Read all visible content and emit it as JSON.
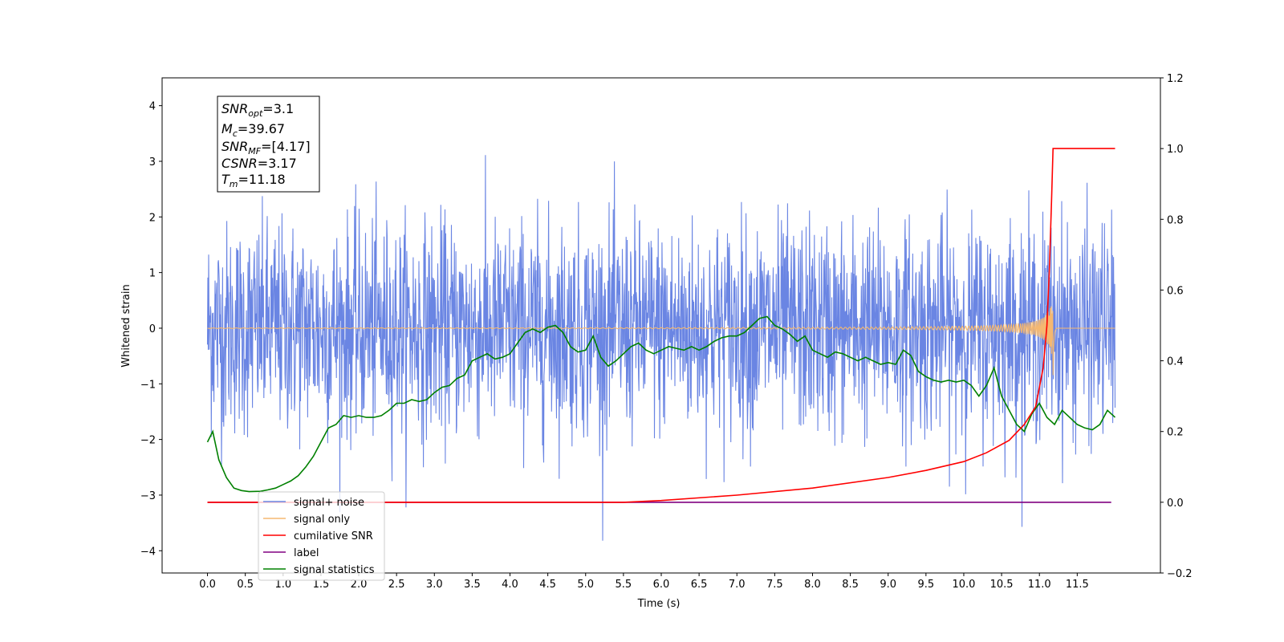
{
  "chart_data": {
    "type": "line",
    "xlabel": "Time (s)",
    "ylabel": "Whitened strain",
    "xlim": [
      -0.6,
      12.6
    ],
    "ylim": [
      -4.4,
      4.5
    ],
    "y2lim": [
      -0.2,
      1.2
    ],
    "xticks": [
      "0.0",
      "0.5",
      "1.0",
      "1.5",
      "2.0",
      "2.5",
      "3.0",
      "3.5",
      "4.0",
      "4.5",
      "5.0",
      "5.5",
      "6.0",
      "6.5",
      "7.0",
      "7.5",
      "8.0",
      "8.5",
      "9.0",
      "9.5",
      "10.0",
      "10.5",
      "11.0",
      "11.5"
    ],
    "yticks": [
      "4",
      "3",
      "2",
      "1",
      "0",
      "−1",
      "−2",
      "−3",
      "−4"
    ],
    "y2ticks": [
      "1.2",
      "1.0",
      "0.8",
      "0.6",
      "0.4",
      "0.2",
      "0.0",
      "−0.2"
    ],
    "legend_position": "lower-left",
    "annotation": {
      "snr_opt": {
        "main": "SNR",
        "sub": "opt",
        "value": "=3.1"
      },
      "mc": {
        "main": "M",
        "sub": "c",
        "value": "=39.67"
      },
      "snr_mf": {
        "main": "SNR",
        "sub": "MF",
        "value": "=[4.17]"
      },
      "csnr": {
        "main": "CSNR",
        "value": "=3.17"
      },
      "tm": {
        "main": "T",
        "sub": "m",
        "value": "=11.18"
      }
    },
    "series": [
      {
        "name": "signal+ noise",
        "color": "#6a85e3",
        "axis": "left",
        "std": 0.95,
        "range": [
          0.0,
          12.0
        ]
      },
      {
        "name": "signal only",
        "color": "#f5b870",
        "axis": "left",
        "merger_time": 11.18,
        "peak_amplitude": 0.65
      },
      {
        "name": "cumilative SNR",
        "color": "#ff0000",
        "axis": "right",
        "x": [
          0.0,
          5.5,
          6.0,
          7.0,
          8.0,
          9.0,
          9.5,
          10.0,
          10.3,
          10.6,
          10.8,
          10.95,
          11.05,
          11.1,
          11.13,
          11.16,
          11.18,
          12.0
        ],
        "y": [
          0.0,
          0.0,
          0.005,
          0.02,
          0.04,
          0.07,
          0.09,
          0.115,
          0.14,
          0.175,
          0.22,
          0.27,
          0.38,
          0.5,
          0.65,
          0.85,
          1.0,
          1.0
        ]
      },
      {
        "name": "label",
        "color": "#800080",
        "axis": "right",
        "x": [
          0.0,
          11.95
        ],
        "y": [
          0.0,
          0.0
        ]
      },
      {
        "name": "signal statistics",
        "color": "#008000",
        "axis": "right",
        "x": [
          0.0,
          0.07,
          0.15,
          0.25,
          0.35,
          0.45,
          0.55,
          0.7,
          0.8,
          0.9,
          1.0,
          1.1,
          1.2,
          1.3,
          1.4,
          1.5,
          1.6,
          1.7,
          1.8,
          1.9,
          2.0,
          2.1,
          2.2,
          2.3,
          2.4,
          2.5,
          2.6,
          2.7,
          2.8,
          2.9,
          3.0,
          3.1,
          3.2,
          3.3,
          3.4,
          3.5,
          3.6,
          3.7,
          3.8,
          3.9,
          4.0,
          4.1,
          4.2,
          4.3,
          4.4,
          4.5,
          4.6,
          4.7,
          4.8,
          4.9,
          5.0,
          5.1,
          5.2,
          5.3,
          5.4,
          5.5,
          5.6,
          5.7,
          5.8,
          5.9,
          6.0,
          6.1,
          6.2,
          6.3,
          6.4,
          6.5,
          6.6,
          6.7,
          6.8,
          6.9,
          7.0,
          7.1,
          7.2,
          7.3,
          7.4,
          7.5,
          7.6,
          7.7,
          7.8,
          7.9,
          8.0,
          8.1,
          8.2,
          8.3,
          8.4,
          8.5,
          8.6,
          8.7,
          8.8,
          8.9,
          9.0,
          9.1,
          9.2,
          9.3,
          9.4,
          9.5,
          9.6,
          9.7,
          9.8,
          9.9,
          10.0,
          10.1,
          10.2,
          10.3,
          10.4,
          10.5,
          10.6,
          10.7,
          10.8,
          10.9,
          11.0,
          11.1,
          11.2,
          11.3,
          11.4,
          11.5,
          11.6,
          11.7,
          11.8,
          11.9,
          12.0
        ],
        "y": [
          0.17,
          0.2,
          0.12,
          0.07,
          0.04,
          0.033,
          0.03,
          0.031,
          0.035,
          0.04,
          0.05,
          0.06,
          0.075,
          0.1,
          0.13,
          0.17,
          0.21,
          0.22,
          0.245,
          0.24,
          0.245,
          0.24,
          0.24,
          0.245,
          0.26,
          0.28,
          0.28,
          0.29,
          0.285,
          0.29,
          0.31,
          0.325,
          0.33,
          0.35,
          0.36,
          0.4,
          0.41,
          0.42,
          0.405,
          0.41,
          0.42,
          0.45,
          0.48,
          0.49,
          0.48,
          0.495,
          0.5,
          0.48,
          0.44,
          0.425,
          0.43,
          0.47,
          0.41,
          0.385,
          0.4,
          0.42,
          0.44,
          0.45,
          0.43,
          0.42,
          0.43,
          0.44,
          0.435,
          0.43,
          0.44,
          0.43,
          0.44,
          0.455,
          0.465,
          0.47,
          0.47,
          0.48,
          0.5,
          0.52,
          0.525,
          0.5,
          0.49,
          0.475,
          0.455,
          0.47,
          0.43,
          0.42,
          0.41,
          0.425,
          0.42,
          0.41,
          0.4,
          0.41,
          0.4,
          0.39,
          0.395,
          0.39,
          0.43,
          0.415,
          0.37,
          0.355,
          0.345,
          0.34,
          0.345,
          0.34,
          0.345,
          0.33,
          0.3,
          0.33,
          0.38,
          0.3,
          0.26,
          0.22,
          0.2,
          0.25,
          0.28,
          0.24,
          0.22,
          0.26,
          0.24,
          0.22,
          0.21,
          0.205,
          0.22,
          0.26,
          0.24
        ]
      }
    ]
  }
}
